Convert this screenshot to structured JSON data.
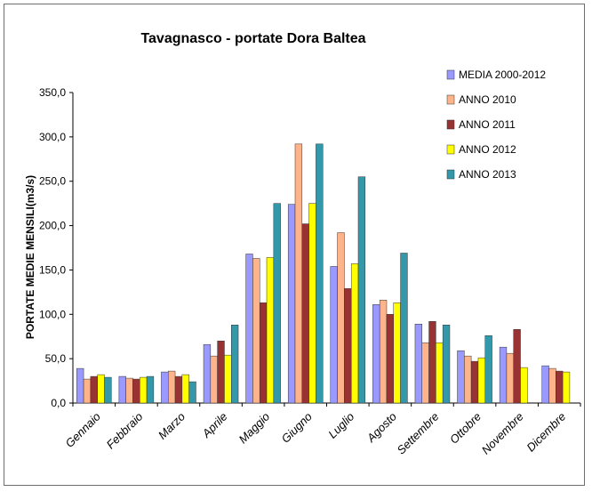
{
  "chart_data": {
    "type": "bar",
    "title": "Tavagnasco - portate Dora Baltea",
    "xlabel": "",
    "ylabel": "PORTATE MEDIE MENSILI(m3/s)",
    "ylim": [
      0,
      350
    ],
    "ytick_step": 50,
    "ytick_labels": [
      "0,0",
      "50,0",
      "100,0",
      "150,0",
      "200,0",
      "250,0",
      "300,0",
      "350,0"
    ],
    "grid": false,
    "legend_position": "top-right",
    "categories": [
      "Gennaio",
      "Febbraio",
      "Marzo",
      "Aprile",
      "Maggio",
      "Giugno",
      "Luglio",
      "Agosto",
      "Settembre",
      "Ottobre",
      "Novembre",
      "Dicembre"
    ],
    "series": [
      {
        "name": "MEDIA 2000-2012",
        "color": "#9999ff",
        "values": [
          39,
          30,
          35,
          66,
          168,
          224,
          154,
          111,
          89,
          59,
          63,
          42
        ]
      },
      {
        "name": "ANNO 2010",
        "color": "#ffb38a",
        "values": [
          27,
          28,
          36,
          53,
          163,
          292,
          192,
          116,
          68,
          53,
          56,
          39
        ]
      },
      {
        "name": "ANNO 2011",
        "color": "#993333",
        "values": [
          30,
          27,
          30,
          70,
          113,
          202,
          129,
          100,
          92,
          47,
          83,
          36
        ]
      },
      {
        "name": "ANNO 2012",
        "color": "#ffff00",
        "values": [
          32,
          29,
          32,
          54,
          164,
          225,
          157,
          113,
          68,
          51,
          40,
          35
        ]
      },
      {
        "name": "ANNO 2013",
        "color": "#3399aa",
        "values": [
          29,
          30,
          24,
          88,
          225,
          292,
          255,
          169,
          88,
          76,
          null,
          null
        ]
      }
    ]
  }
}
